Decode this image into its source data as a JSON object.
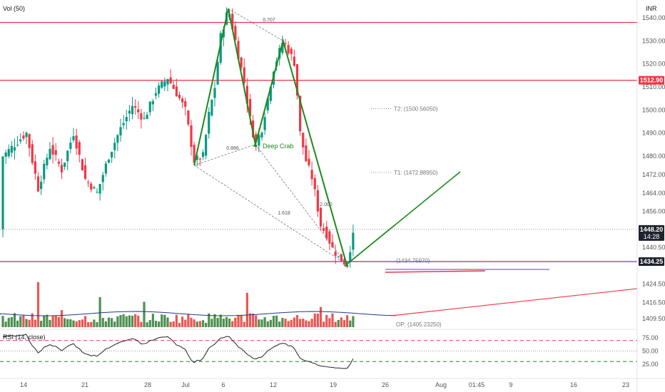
{
  "chart_data": {
    "type": "candlestick",
    "indicator_top_left": "Vol (50)",
    "currency": "INR",
    "price_axis": {
      "ticks": [
        "1540.00",
        "1530.00",
        "1520.00",
        "1510.00",
        "1500.00",
        "1490.00",
        "1480.00",
        "1472.00",
        "1464.00",
        "1456.00",
        "1440.50",
        "1424.50",
        "1416.50",
        "1409.50"
      ],
      "ylim": [
        1405,
        1545
      ]
    },
    "price_badges": [
      {
        "id": "res",
        "value": "1512.90",
        "color": "#f23645"
      },
      {
        "id": "last",
        "value": "1448.20",
        "sub": "14:28",
        "color": "#1e222d"
      },
      {
        "id": "sup",
        "value": "1434.25",
        "color": "#1e222d"
      }
    ],
    "x_axis_ticks": [
      "14",
      "21",
      "28",
      "Jul",
      "6",
      "12",
      "19",
      "26",
      "Aug",
      "01:45",
      "9",
      "16",
      "23"
    ],
    "pattern": {
      "name": "Deep Crab",
      "ratios": [
        "0.707",
        "0.886",
        "1.618",
        "2.000"
      ],
      "points": [
        {
          "id": "X",
          "day": 6.3,
          "price": 1544
        },
        {
          "id": "A",
          "day": 0.5,
          "price": 1476
        },
        {
          "id": "B",
          "day": 15.6,
          "price": 1530
        },
        {
          "id": "C",
          "day": 10.9,
          "price": 1485
        },
        {
          "id": "D",
          "day": 26.4,
          "price": 1433
        }
      ],
      "targets": [
        {
          "label": "T2: (1500.56050)",
          "price": 1500.56
        },
        {
          "label": "T1: (1472.88950)",
          "price": 1472.89
        },
        {
          "label": "(1434.75970)",
          "price": 1434.76
        },
        {
          "label": "OP: (1405.23250)",
          "price": 1405.23
        }
      ]
    },
    "horizontal_lines": [
      {
        "price": 1538,
        "color": "#f23645"
      },
      {
        "price": 1512.9,
        "color": "#f23645"
      },
      {
        "price": 1448.2,
        "color": "#9598a1",
        "dotted": true
      },
      {
        "price": 1434.25,
        "color": "#6a3ab0"
      }
    ],
    "rsi": {
      "label": "RSI (14, close)",
      "ticks": [
        "75.00",
        "50.00",
        "25.00"
      ],
      "overbought": 70,
      "oversold": 30,
      "mid": 50
    },
    "colors": {
      "up": "#089981",
      "down": "#f23645",
      "pattern": "#1b8a1b",
      "vol_up": "#2e7d32",
      "vol_down": "#e53935"
    }
  }
}
